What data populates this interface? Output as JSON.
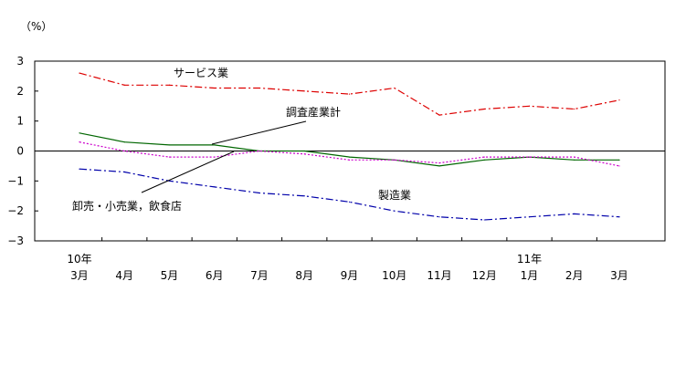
{
  "chart_data": {
    "type": "line",
    "unit_label": "（%）",
    "ylim": [
      -3,
      3
    ],
    "y_ticks": [
      "3",
      "2",
      "1",
      "0",
      "−1",
      "−2",
      "−3"
    ],
    "y_tick_values": [
      3,
      2,
      1,
      0,
      -1,
      -2,
      -3
    ],
    "categories": [
      "3月",
      "4月",
      "5月",
      "6月",
      "7月",
      "8月",
      "9月",
      "10月",
      "11月",
      "12月",
      "1月",
      "2月",
      "3月"
    ],
    "year_labels": [
      {
        "index": 0,
        "label": "10年"
      },
      {
        "index": 10,
        "label": "11年"
      }
    ],
    "grid": false,
    "zero_line": true,
    "series": [
      {
        "name": "サービス業",
        "color": "#dd0000",
        "dash": "dash-dot",
        "values": [
          2.6,
          2.2,
          2.2,
          2.1,
          2.1,
          2.0,
          1.9,
          2.1,
          1.2,
          1.4,
          1.5,
          1.4,
          1.7
        ]
      },
      {
        "name": "調査産業計",
        "color": "#006600",
        "dash": "solid",
        "values": [
          0.6,
          0.3,
          0.2,
          0.2,
          0.0,
          0.0,
          -0.2,
          -0.3,
          -0.5,
          -0.3,
          -0.2,
          -0.3,
          -0.3
        ]
      },
      {
        "name": "卸売・小売業，飲食店",
        "color": "#cc00cc",
        "dash": "dotted",
        "values": [
          0.3,
          0.0,
          -0.2,
          -0.2,
          0.0,
          -0.1,
          -0.3,
          -0.3,
          -0.4,
          -0.2,
          -0.2,
          -0.2,
          -0.5
        ]
      },
      {
        "name": "製造業",
        "color": "#0000aa",
        "dash": "dash-dot",
        "values": [
          -0.6,
          -0.7,
          -1.0,
          -1.2,
          -1.4,
          -1.5,
          -1.7,
          -2.0,
          -2.2,
          -2.3,
          -2.2,
          -2.1,
          -2.2
        ]
      }
    ]
  }
}
